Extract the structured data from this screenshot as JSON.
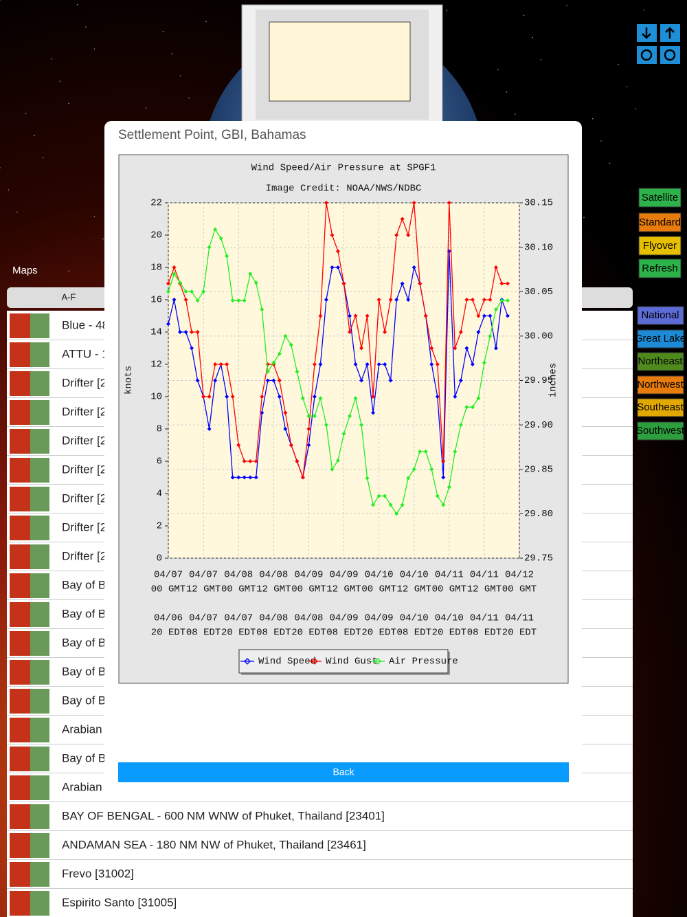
{
  "app_label": "Maps",
  "tab": "A-F",
  "buttons": [
    "Satellite",
    "Standard",
    "Flyover",
    "Refresh"
  ],
  "regions": [
    "National",
    "Great Lake",
    "Northeast",
    "Northwest",
    "Southeast",
    "Southwest"
  ],
  "list": [
    "Blue - 48",
    "ATTU - 1",
    "Drifter [2",
    "Drifter [2",
    "Drifter [2",
    "Drifter [2",
    "Drifter [2",
    "Drifter [2",
    "Drifter [2",
    "Bay of B",
    "Bay of B",
    "Bay of B",
    "Bay of B",
    "Bay of B",
    "Arabian",
    "Bay of B",
    "Arabian",
    "BAY OF BENGAL - 600 NM WNW of Phuket, Thailand [23401]",
    "ANDAMAN SEA - 180 NM NW of Phuket, Thailand [23461]",
    "Frevo [31002]",
    "Espirito Santo [31005]"
  ],
  "modal": {
    "title": "Settlement Point, GBI, Bahamas",
    "button": "Back"
  },
  "chart_data": {
    "type": "line",
    "title": "Wind Speed/Air Pressure at SPGF1",
    "subtitle": "Image Credit: NOAA/NWS/NDBC",
    "ylabel": "knots",
    "y2label": "inches",
    "categories": [
      [
        "04/07",
        "00 GMT"
      ],
      null,
      null,
      null,
      null,
      null,
      [
        "04/07",
        "12 GMT"
      ],
      null,
      null,
      null,
      null,
      null,
      [
        "04/08",
        "00 GMT"
      ],
      null,
      null,
      null,
      null,
      null,
      [
        "04/08",
        "12 GMT"
      ],
      null,
      null,
      null,
      null,
      null,
      [
        "04/09",
        "00 GMT"
      ],
      null,
      null,
      null,
      null,
      null,
      [
        "04/09",
        "12 GMT"
      ],
      null,
      null,
      null,
      null,
      null,
      [
        "04/10",
        "00 GMT"
      ],
      null,
      null,
      null,
      null,
      null,
      [
        "04/10",
        "12 GMT"
      ],
      null,
      null,
      null,
      null,
      null,
      [
        "04/11",
        "00 GMT"
      ],
      null,
      null,
      null,
      null,
      null,
      [
        "04/11",
        "12 GMT"
      ],
      null,
      null,
      null,
      null,
      null,
      [
        "04/12",
        "00 GMT"
      ]
    ],
    "categories2": [
      [
        "04/06",
        "20 EDT"
      ],
      null,
      null,
      null,
      null,
      null,
      [
        "04/07",
        "08 EDT"
      ],
      null,
      null,
      null,
      null,
      null,
      [
        "04/07",
        "20 EDT"
      ],
      null,
      null,
      null,
      null,
      null,
      [
        "04/08",
        "08 EDT"
      ],
      null,
      null,
      null,
      null,
      null,
      [
        "04/08",
        "20 EDT"
      ],
      null,
      null,
      null,
      null,
      null,
      [
        "04/09",
        "08 EDT"
      ],
      null,
      null,
      null,
      null,
      null,
      [
        "04/09",
        "20 EDT"
      ],
      null,
      null,
      null,
      null,
      null,
      [
        "04/10",
        "08 EDT"
      ],
      null,
      null,
      null,
      null,
      null,
      [
        "04/10",
        "20 EDT"
      ],
      null,
      null,
      null,
      null,
      null,
      [
        "04/11",
        "08 EDT"
      ],
      null,
      null,
      null,
      null,
      null,
      [
        "04/11",
        "20 EDT"
      ]
    ],
    "series": [
      {
        "name": "Wind Speed",
        "color": "#0000ff",
        "values": [
          14.5,
          16,
          14,
          14,
          13,
          11,
          10,
          8,
          11,
          12,
          10,
          5,
          5,
          5,
          5,
          5,
          9,
          11,
          11,
          10,
          8,
          7,
          6,
          5,
          7,
          10,
          12,
          16,
          18,
          18,
          17,
          15,
          12,
          11,
          12,
          9,
          12,
          12,
          11,
          16,
          17,
          16,
          18,
          17,
          15,
          12,
          10,
          5,
          19,
          10,
          11,
          13,
          12,
          14,
          15,
          15,
          13,
          16,
          15,
          null,
          null
        ]
      },
      {
        "name": "Wind Gust",
        "color": "#ff0000",
        "values": [
          17,
          18,
          17,
          16,
          14,
          14,
          10,
          10,
          12,
          12,
          12,
          10,
          7,
          6,
          6,
          6,
          10,
          12,
          12,
          11,
          9,
          7,
          6,
          5,
          8,
          12,
          15,
          22,
          20,
          19,
          17,
          14,
          15,
          13,
          15,
          10,
          16,
          14,
          16,
          20,
          21,
          20,
          22,
          17,
          15,
          13,
          12,
          6,
          22,
          13,
          14,
          16,
          16,
          15,
          16,
          16,
          18,
          17,
          17,
          null,
          null
        ]
      },
      {
        "name": "Air Pressure",
        "color": "#22ee22",
        "axis": "y2",
        "values": [
          30.05,
          30.07,
          30.06,
          30.05,
          30.05,
          30.04,
          30.05,
          30.1,
          30.12,
          30.11,
          30.09,
          30.04,
          30.04,
          30.04,
          30.07,
          30.06,
          30.03,
          29.96,
          29.97,
          29.98,
          30.0,
          29.99,
          29.96,
          29.93,
          29.91,
          29.91,
          29.93,
          29.9,
          29.85,
          29.86,
          29.89,
          29.91,
          29.93,
          29.9,
          29.84,
          29.81,
          29.82,
          29.82,
          29.81,
          29.8,
          29.81,
          29.84,
          29.85,
          29.87,
          29.87,
          29.85,
          29.82,
          29.81,
          29.83,
          29.87,
          29.9,
          29.92,
          29.92,
          29.93,
          29.97,
          30.0,
          30.03,
          30.04,
          30.04,
          null,
          null
        ]
      }
    ],
    "ylim": [
      0,
      22
    ],
    "yticks": [
      0,
      2,
      4,
      6,
      8,
      10,
      12,
      14,
      16,
      18,
      20,
      22
    ],
    "y2lim": [
      29.75,
      30.15
    ],
    "y2ticks": [
      29.75,
      {
        "value": 29.8,
        "label": "29.80"
      },
      29.85,
      {
        "value": 29.9,
        "label": "29.90"
      },
      29.95,
      {
        "value": 30,
        "label": "30.00"
      },
      30.05,
      {
        "value": 30.1,
        "label": "30.10"
      },
      30.15
    ],
    "grid": true,
    "legend": "bottom"
  }
}
